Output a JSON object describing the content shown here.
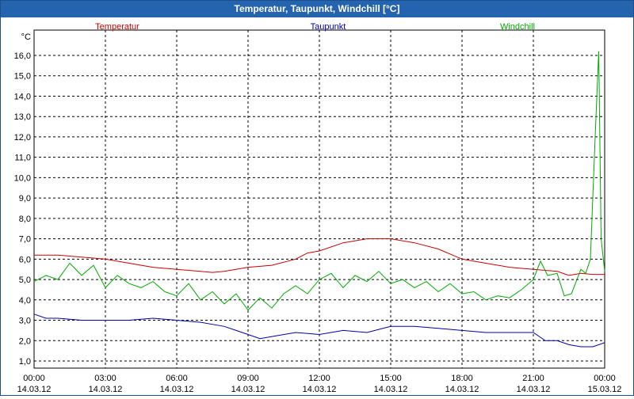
{
  "window": {
    "title": "Temperatur, Taupunkt, Windchill [°C]"
  },
  "chart_data": {
    "type": "line",
    "title": "Temperatur, Taupunkt, Windchill [°C]",
    "ylabel": "°C",
    "xlabel": "",
    "ylim": [
      0.8,
      17.1
    ],
    "xlim": [
      0,
      24
    ],
    "grid": true,
    "y_ticks": [
      "1,0",
      "2,0",
      "3,0",
      "4,0",
      "5,0",
      "6,0",
      "7,0",
      "8,0",
      "9,0",
      "10,0",
      "11,0",
      "12,0",
      "13,0",
      "14,0",
      "15,0",
      "16,0"
    ],
    "y_tick_values": [
      1,
      2,
      3,
      4,
      5,
      6,
      7,
      8,
      9,
      10,
      11,
      12,
      13,
      14,
      15,
      16
    ],
    "x_ticks": [
      {
        "value": 0,
        "time": "00:00",
        "date": "14.03.12"
      },
      {
        "value": 3,
        "time": "03:00",
        "date": "14.03.12"
      },
      {
        "value": 6,
        "time": "06:00",
        "date": "14.03.12"
      },
      {
        "value": 9,
        "time": "09:00",
        "date": "14.03.12"
      },
      {
        "value": 12,
        "time": "12:00",
        "date": "14.03.12"
      },
      {
        "value": 15,
        "time": "15:00",
        "date": "14.03.12"
      },
      {
        "value": 18,
        "time": "18:00",
        "date": "14.03.12"
      },
      {
        "value": 21,
        "time": "21:00",
        "date": "14.03.12"
      },
      {
        "value": 24,
        "time": "00:00",
        "date": "15.03.12"
      }
    ],
    "legend": [
      {
        "name": "Temperatur",
        "color": "#cc0000"
      },
      {
        "name": "Taupunkt",
        "color": "#0000aa"
      },
      {
        "name": "Windchill",
        "color": "#00aa00"
      }
    ],
    "series": [
      {
        "name": "Temperatur",
        "color": "#cc0000",
        "x": [
          0,
          1,
          2,
          3,
          4,
          5,
          6,
          7,
          7.5,
          8,
          9,
          10,
          11,
          11.5,
          12,
          13,
          14,
          15,
          16,
          17,
          18,
          19,
          20,
          21,
          22,
          22.5,
          23,
          23.5,
          24
        ],
        "values": [
          6.2,
          6.2,
          6.1,
          6.0,
          5.8,
          5.6,
          5.5,
          5.4,
          5.35,
          5.4,
          5.6,
          5.7,
          6.0,
          6.3,
          6.4,
          6.8,
          7.0,
          7.0,
          6.8,
          6.5,
          6.0,
          5.8,
          5.6,
          5.5,
          5.4,
          5.2,
          5.3,
          5.25,
          5.25
        ]
      },
      {
        "name": "Taupunkt",
        "color": "#0000aa",
        "x": [
          0,
          0.5,
          1,
          2,
          3,
          4,
          5,
          6,
          7,
          8,
          8.5,
          9,
          9.5,
          10,
          11,
          12,
          13,
          14,
          15,
          16,
          17,
          18,
          19,
          20,
          21,
          21.5,
          22,
          22.5,
          23,
          23.5,
          24
        ],
        "values": [
          3.3,
          3.1,
          3.1,
          3.0,
          3.0,
          3.0,
          3.1,
          3.0,
          2.9,
          2.7,
          2.5,
          2.3,
          2.1,
          2.2,
          2.4,
          2.3,
          2.5,
          2.4,
          2.7,
          2.7,
          2.6,
          2.5,
          2.4,
          2.4,
          2.4,
          2.0,
          2.0,
          1.8,
          1.7,
          1.7,
          1.9
        ]
      },
      {
        "name": "Windchill",
        "color": "#00aa00",
        "x": [
          0,
          0.5,
          1,
          1.5,
          2,
          2.5,
          3,
          3.5,
          4,
          4.5,
          5,
          5.5,
          6,
          6.5,
          7,
          7.5,
          8,
          8.5,
          9,
          9.5,
          10,
          10.5,
          11,
          11.5,
          12,
          12.5,
          13,
          13.5,
          14,
          14.5,
          15,
          15.5,
          16,
          16.5,
          17,
          17.5,
          18,
          18.5,
          19,
          19.5,
          20,
          20.5,
          21,
          21.3,
          21.6,
          22,
          22.3,
          22.6,
          23,
          23.2,
          23.4,
          23.6,
          23.75,
          23.85,
          24
        ],
        "values": [
          4.9,
          5.2,
          5.0,
          5.8,
          5.2,
          5.7,
          4.6,
          5.2,
          4.8,
          4.6,
          4.9,
          4.4,
          4.2,
          4.8,
          4.0,
          4.4,
          3.8,
          4.3,
          3.5,
          4.1,
          3.6,
          4.3,
          4.7,
          4.3,
          5.0,
          5.3,
          4.6,
          5.2,
          4.9,
          5.4,
          4.8,
          5.0,
          4.6,
          4.9,
          4.4,
          4.8,
          4.3,
          4.4,
          4.0,
          4.2,
          4.1,
          4.5,
          5.0,
          5.9,
          5.2,
          5.3,
          4.2,
          4.3,
          5.5,
          5.3,
          6.0,
          12.0,
          16.2,
          7.0,
          5.4
        ]
      }
    ]
  }
}
